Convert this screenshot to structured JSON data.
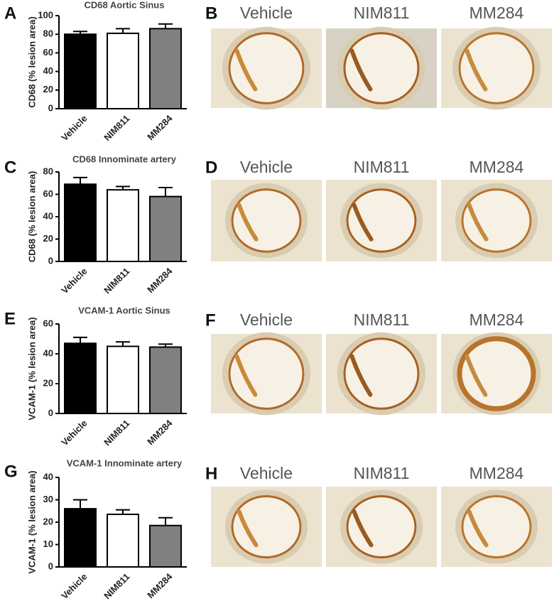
{
  "chart_data": [
    {
      "type": "bar",
      "panel_label": "A",
      "title": "CD68 Aortic Sinus",
      "y_label": "CD68 (% lesion area)",
      "categories": [
        "Vehicle",
        "NIM811",
        "MM284"
      ],
      "values": [
        80,
        81,
        86
      ],
      "errors": [
        3,
        5,
        5
      ],
      "colors": [
        "#000000",
        "#ffffff",
        "#808080"
      ],
      "ylim": [
        0,
        100
      ],
      "yticks": [
        0,
        20,
        40,
        60,
        80,
        100
      ],
      "grid": false
    },
    {
      "type": "bar",
      "panel_label": "C",
      "title": "CD68 Innominate artery",
      "y_label": "CD68 (% lesion area)",
      "categories": [
        "Vehicle",
        "NIM811",
        "MM284"
      ],
      "values": [
        69,
        64,
        58
      ],
      "errors": [
        6,
        3,
        8
      ],
      "colors": [
        "#000000",
        "#ffffff",
        "#808080"
      ],
      "ylim": [
        0,
        80
      ],
      "yticks": [
        0,
        20,
        40,
        60,
        80
      ],
      "grid": false
    },
    {
      "type": "bar",
      "panel_label": "E",
      "title": "VCAM-1 Aortic Sinus",
      "y_label": "VCAM-1 (% lesion area)",
      "categories": [
        "Vehicle",
        "NIM811",
        "MM284"
      ],
      "values": [
        47,
        45,
        44.5
      ],
      "errors": [
        4,
        3,
        2
      ],
      "colors": [
        "#000000",
        "#ffffff",
        "#808080"
      ],
      "ylim": [
        0,
        60
      ],
      "yticks": [
        0,
        20,
        40,
        60
      ],
      "grid": false
    },
    {
      "type": "bar",
      "panel_label": "G",
      "title": "VCAM-1 Innominate artery",
      "y_label": "VCAM-1 (% lesion area)",
      "categories": [
        "Vehicle",
        "NIM811",
        "MM284"
      ],
      "values": [
        26,
        23.5,
        18.5
      ],
      "errors": [
        4,
        2,
        3.5
      ],
      "colors": [
        "#000000",
        "#ffffff",
        "#808080"
      ],
      "ylim": [
        0,
        40
      ],
      "yticks": [
        0,
        10,
        20,
        30,
        40
      ],
      "grid": false
    }
  ],
  "image_panels": [
    {
      "panel_label": "B",
      "columns": [
        "Vehicle",
        "NIM811",
        "MM284"
      ]
    },
    {
      "panel_label": "D",
      "columns": [
        "Vehicle",
        "NIM811",
        "MM284"
      ]
    },
    {
      "panel_label": "F",
      "columns": [
        "Vehicle",
        "NIM811",
        "MM284"
      ]
    },
    {
      "panel_label": "H",
      "columns": [
        "Vehicle",
        "NIM811",
        "MM284"
      ]
    }
  ]
}
